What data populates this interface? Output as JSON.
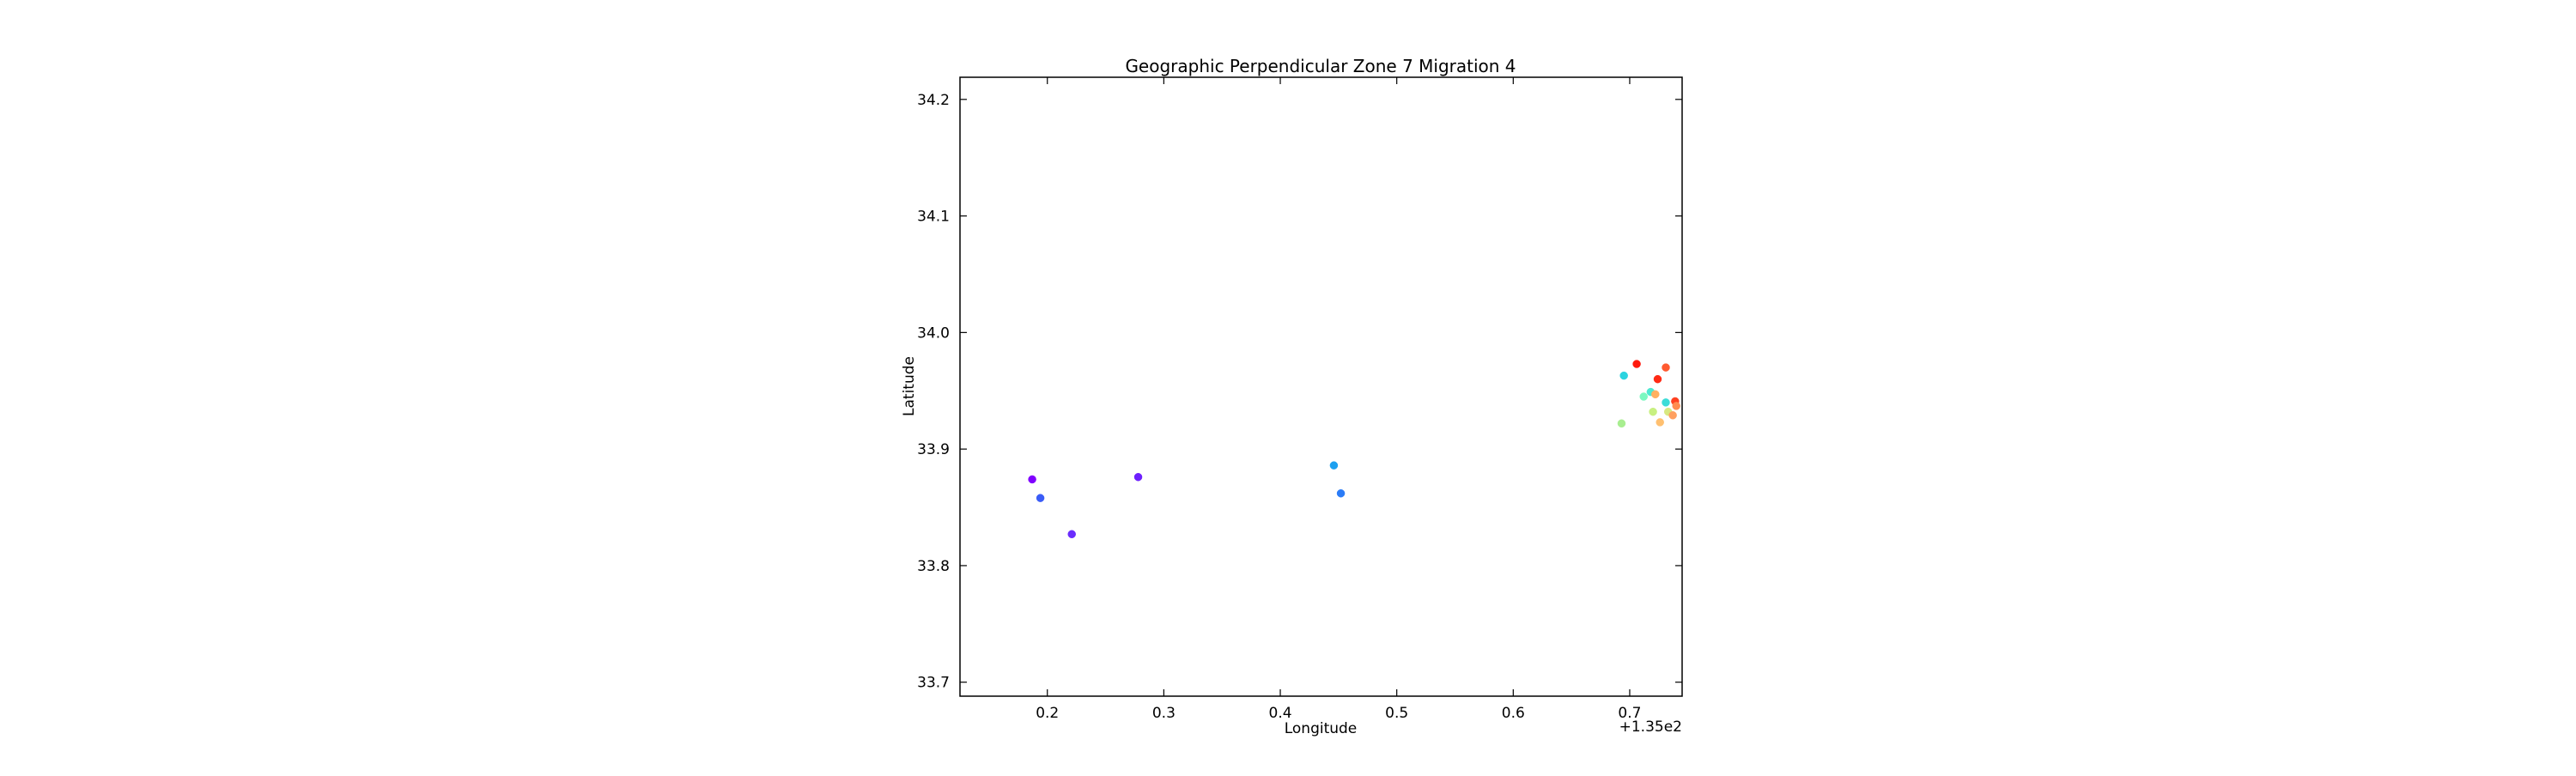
{
  "chart_data": {
    "type": "scatter",
    "title": "Geographic Perpendicular Zone 7 Migration 4",
    "xlabel": "Longitude",
    "ylabel": "Latitude",
    "x_offset_label": "+1.35e2",
    "xlim": [
      135.125,
      135.745
    ],
    "ylim": [
      33.688,
      34.219
    ],
    "xticks": [
      0.2,
      0.3,
      0.4,
      0.5,
      0.6,
      0.7
    ],
    "xtick_labels": [
      "0.2",
      "0.3",
      "0.4",
      "0.5",
      "0.6",
      "0.7"
    ],
    "yticks": [
      33.7,
      33.8,
      33.9,
      34.0,
      34.1,
      34.2
    ],
    "ytick_labels": [
      "33.7",
      "33.8",
      "33.9",
      "34.0",
      "34.1",
      "34.2"
    ],
    "grid": false,
    "colormap": "rainbow",
    "points": [
      {
        "x": 135.187,
        "y": 33.874,
        "color": "#8000ff"
      },
      {
        "x": 135.194,
        "y": 33.858,
        "color": "#3a5cf7"
      },
      {
        "x": 135.221,
        "y": 33.827,
        "color": "#6a2cfd"
      },
      {
        "x": 135.278,
        "y": 33.876,
        "color": "#6e20fe"
      },
      {
        "x": 135.446,
        "y": 33.886,
        "color": "#1ca0f0"
      },
      {
        "x": 135.452,
        "y": 33.862,
        "color": "#2b7cf7"
      },
      {
        "x": 135.693,
        "y": 33.922,
        "color": "#a8ee90"
      },
      {
        "x": 135.695,
        "y": 33.963,
        "color": "#2bd4e0"
      },
      {
        "x": 135.706,
        "y": 33.973,
        "color": "#ff1a0d"
      },
      {
        "x": 135.712,
        "y": 33.945,
        "color": "#7af8c0"
      },
      {
        "x": 135.718,
        "y": 33.949,
        "color": "#4ee8d0"
      },
      {
        "x": 135.72,
        "y": 33.932,
        "color": "#c8f080"
      },
      {
        "x": 135.722,
        "y": 33.947,
        "color": "#ffb060"
      },
      {
        "x": 135.724,
        "y": 33.96,
        "color": "#ff2a15"
      },
      {
        "x": 135.726,
        "y": 33.923,
        "color": "#ffc070"
      },
      {
        "x": 135.731,
        "y": 33.97,
        "color": "#ff5a30"
      },
      {
        "x": 135.731,
        "y": 33.94,
        "color": "#3cdcd8"
      },
      {
        "x": 135.733,
        "y": 33.932,
        "color": "#d8e880"
      },
      {
        "x": 135.737,
        "y": 33.929,
        "color": "#ffa060"
      },
      {
        "x": 135.739,
        "y": 33.941,
        "color": "#ff4020"
      },
      {
        "x": 135.74,
        "y": 33.937,
        "color": "#ff8c50"
      }
    ]
  }
}
